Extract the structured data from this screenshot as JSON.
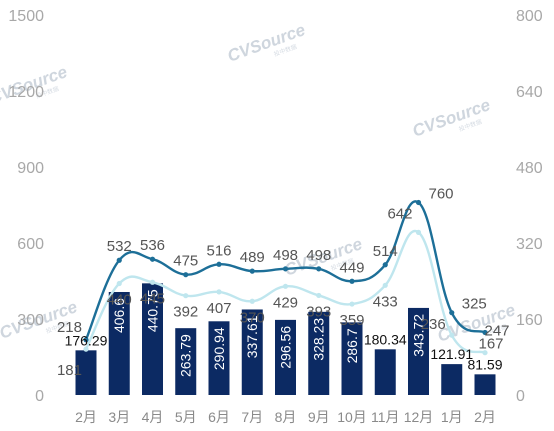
{
  "chart_data": {
    "type": "bar+line",
    "categories": [
      "2月",
      "3月",
      "4月",
      "5月",
      "6月",
      "7月",
      "8月",
      "9月",
      "10月",
      "11月",
      "12月",
      "1月",
      "2月"
    ],
    "left_axis": {
      "ticks": [
        "0",
        "300",
        "600",
        "900",
        "1200",
        "1500"
      ],
      "ylim": [
        0,
        1500
      ]
    },
    "right_axis": {
      "ticks": [
        "0",
        "160",
        "320",
        "480",
        "640",
        "800"
      ],
      "ylim": [
        0,
        800
      ]
    },
    "grid": false,
    "legend": "none",
    "series": [
      {
        "type": "bar",
        "axis": "left",
        "color": "#0c2a63",
        "values": [
          176.29,
          406.6,
          440.75,
          263.79,
          290.94,
          337.61,
          296.56,
          328.23,
          286.7,
          180.34,
          343.72,
          121.91,
          81.59
        ],
        "labels": [
          "176.29",
          "406.6",
          "440.75",
          "263.79",
          "290.94",
          "337.61",
          "296.56",
          "328.23",
          "286.7",
          "180.34",
          "343.72",
          "121.91",
          "81.59"
        ]
      },
      {
        "type": "line",
        "axis": "left",
        "color": "#1d6f98",
        "values": [
          218,
          532,
          536,
          475,
          516,
          489,
          498,
          498,
          449,
          514,
          760,
          325,
          247
        ],
        "labels": [
          "218",
          "532",
          "536",
          "475",
          "516",
          "489",
          "498",
          "498",
          "449",
          "514",
          "760",
          "325",
          "247"
        ]
      },
      {
        "type": "line",
        "axis": "left",
        "color": "#bfe6ee",
        "values": [
          181,
          440,
          445,
          392,
          407,
          370,
          429,
          393,
          359,
          433,
          642,
          236,
          167
        ],
        "labels": [
          "181",
          "440",
          "445",
          "392",
          "407",
          "370",
          "429",
          "393",
          "359",
          "433",
          "642",
          "236",
          "167"
        ]
      }
    ]
  },
  "watermark": {
    "brand": "CVSource",
    "sub": "投中数据"
  }
}
